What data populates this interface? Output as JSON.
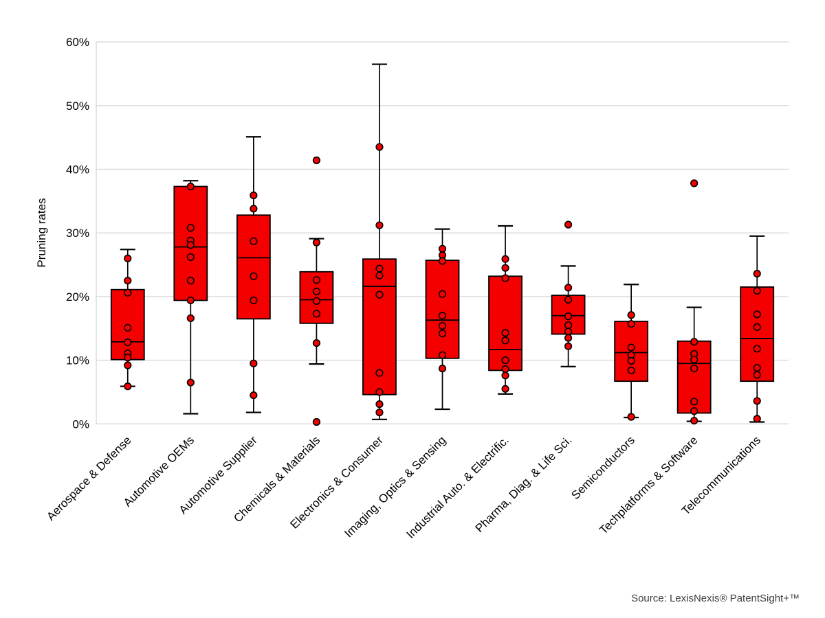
{
  "source_note": "Source: LexisNexis® PatentSight+™",
  "chart_data": {
    "type": "boxplot-with-points",
    "title": "",
    "ylabel": "Pruning rates",
    "xlabel": "",
    "unit": "%",
    "ylim": [
      0,
      60
    ],
    "y_tick_step": 10,
    "y_tick_labels": [
      "0%",
      "10%",
      "20%",
      "30%",
      "40%",
      "50%",
      "60%"
    ],
    "grid": true,
    "legend": "none",
    "colors": {
      "box_fill": "#f40000",
      "box_stroke": "#000000",
      "marker_fill": "#f40000",
      "marker_stroke": "#000000",
      "gridline": "#d9d9d9"
    },
    "categories": [
      "Aerospace & Defense",
      "Automotive OEMs",
      "Automotive Supplier",
      "Chemicals & Materials",
      "Electronics & Consumer",
      "Imaging, Optics & Sensing",
      "Industrial Auto. & Electrific.",
      "Pharma, Diag. & Life Sci.",
      "Semiconductors",
      "Techplatforms & Software",
      "Telecommunications"
    ],
    "series": [
      {
        "label": "Aerospace & Defense",
        "whisker_low": 5.9,
        "q1": 10.1,
        "median": 12.9,
        "q3": 21.1,
        "whisker_high": 27.4,
        "points": [
          26.0,
          22.5,
          20.6,
          15.1,
          12.8,
          11.1,
          10.4,
          9.2,
          5.9
        ]
      },
      {
        "label": "Automotive OEMs",
        "whisker_low": 1.6,
        "q1": 19.4,
        "median": 27.8,
        "q3": 37.3,
        "whisker_high": 38.2,
        "points": [
          37.3,
          30.8,
          28.8,
          28.1,
          26.2,
          22.5,
          19.4,
          16.6,
          6.5
        ]
      },
      {
        "label": "Automotive Supplier",
        "whisker_low": 1.8,
        "q1": 16.5,
        "median": 26.1,
        "q3": 32.8,
        "whisker_high": 45.1,
        "points": [
          35.9,
          33.8,
          28.7,
          23.2,
          19.4,
          9.5,
          4.5
        ]
      },
      {
        "label": "Chemicals & Materials",
        "whisker_low": 9.4,
        "q1": 15.8,
        "median": 19.5,
        "q3": 23.9,
        "whisker_high": 29.1,
        "points": [
          41.4,
          28.5,
          22.6,
          20.8,
          19.3,
          17.3,
          12.7,
          0.3
        ]
      },
      {
        "label": "Electronics & Consumer",
        "whisker_low": 0.7,
        "q1": 4.6,
        "median": 21.6,
        "q3": 25.9,
        "whisker_high": 56.5,
        "points": [
          43.5,
          31.2,
          24.4,
          23.3,
          20.3,
          8.0,
          5.0,
          3.1,
          1.8
        ]
      },
      {
        "label": "Imaging, Optics & Sensing",
        "whisker_low": 2.3,
        "q1": 10.3,
        "median": 16.3,
        "q3": 25.7,
        "whisker_high": 30.6,
        "points": [
          27.5,
          26.5,
          25.6,
          20.4,
          17.0,
          15.4,
          14.2,
          10.8,
          8.7
        ]
      },
      {
        "label": "Industrial Auto. & Electrific.",
        "whisker_low": 4.7,
        "q1": 8.4,
        "median": 11.7,
        "q3": 23.2,
        "whisker_high": 31.1,
        "points": [
          25.9,
          24.5,
          22.9,
          14.3,
          13.1,
          10.0,
          8.6,
          7.6,
          5.5
        ]
      },
      {
        "label": "Pharma, Diag. & Life Sci.",
        "whisker_low": 9.0,
        "q1": 14.1,
        "median": 17.0,
        "q3": 20.2,
        "whisker_high": 24.8,
        "points": [
          31.3,
          21.4,
          19.5,
          16.9,
          15.5,
          14.5,
          13.5,
          12.2
        ]
      },
      {
        "label": "Semiconductors",
        "whisker_low": 1.0,
        "q1": 6.7,
        "median": 11.2,
        "q3": 16.1,
        "whisker_high": 21.9,
        "points": [
          17.1,
          15.7,
          12.0,
          10.8,
          9.9,
          8.4,
          1.1
        ]
      },
      {
        "label": "Techplatforms & Software",
        "whisker_low": 0.4,
        "q1": 1.7,
        "median": 9.5,
        "q3": 13.0,
        "whisker_high": 18.3,
        "points": [
          37.8,
          12.9,
          11.0,
          10.1,
          8.7,
          3.5,
          2.0,
          0.5
        ]
      },
      {
        "label": "Telecommunications",
        "whisker_low": 0.3,
        "q1": 6.7,
        "median": 13.4,
        "q3": 21.5,
        "whisker_high": 29.5,
        "points": [
          23.6,
          20.9,
          17.2,
          15.2,
          11.8,
          8.8,
          7.7,
          3.6,
          0.8
        ]
      }
    ]
  }
}
